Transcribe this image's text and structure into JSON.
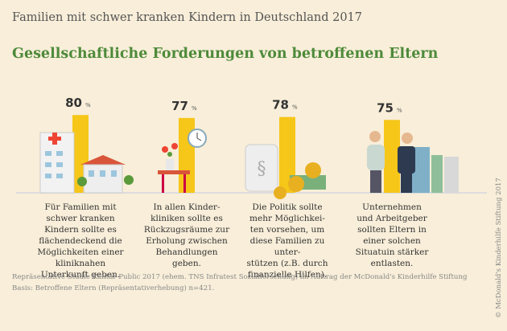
{
  "chart_data": {
    "type": "bar",
    "title": "Familien mit schwer kranken Kindern in Deutschland 2017",
    "subtitle": "Gesellschaftliche Forderungen von betroffenen Eltern",
    "categories": [
      "Für Familien mit\nschwer kranken\nKindern sollte es\nflächendeckend die\nMöglichkeiten einer\nkliniknahen\nUnterkunft geben.",
      "In allen Kinder-\nkliniken sollte es\nRückzugsräume zur\nErholung zwischen\nBehandlungen\ngeben.",
      "Die Politik sollte\nmehr Möglichkei-\nten vorsehen, um\ndiese Familien zu\nunter-\nstützen (z.B. durch\nfinanzielle Hilfen).",
      "Unternehmen\nund Arbeitgeber\nsollten Eltern in\neiner solchen\nSituatuin stärker\nentlasten."
    ],
    "values": [
      80,
      77,
      78,
      75
    ],
    "value_unit": "%",
    "color": "#f6c619",
    "source": "Repräsentative Studie Kantar Public 2017 (ehem. TNS Infratest Sozialforschung) im Auftrag der McDonald's Kinderhilfe Stiftung",
    "basis": "Basis: Betroffene Eltern (Repräsentativerhebung) n=421.",
    "copyright": "© McDonald's Kinderhilfe Stiftung 2017"
  }
}
